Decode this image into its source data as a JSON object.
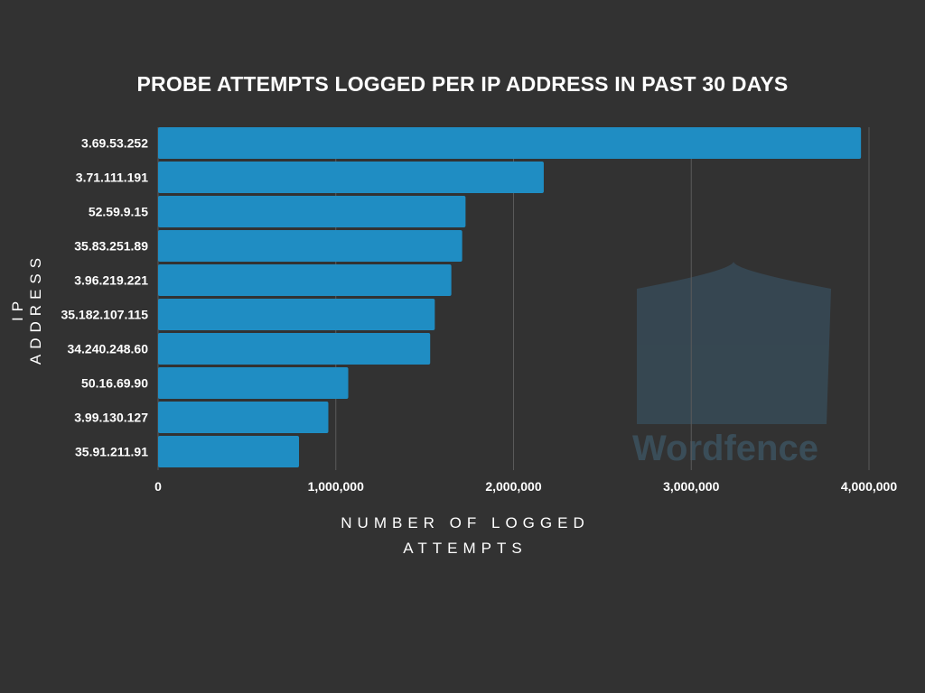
{
  "chart_data": {
    "type": "bar",
    "orientation": "horizontal",
    "title": "PROBE ATTEMPTS LOGGED PER IP ADDRESS IN PAST 30 DAYS",
    "xlabel": "NUMBER OF LOGGED ATTEMPTS",
    "ylabel": "IP ADDRESS",
    "categories": [
      "3.69.53.252",
      "3.71.111.191",
      "52.59.9.15",
      "35.83.251.89",
      "3.96.219.221",
      "35.182.107.115",
      "34.240.248.60",
      "50.16.69.90",
      "3.99.130.127",
      "35.91.211.91"
    ],
    "values": [
      3955000,
      2170000,
      1730000,
      1711000,
      1650000,
      1557000,
      1531000,
      1070000,
      958000,
      793000
    ],
    "xlim": [
      0,
      4000000
    ],
    "xticks": [
      0,
      1000000,
      2000000,
      3000000,
      4000000
    ],
    "xtick_labels": [
      "0",
      "1,000,000",
      "2,000,000",
      "3,000,000",
      "4,000,000"
    ],
    "grid": "vertical",
    "bar_color": "#1f8dc3",
    "background": "#323232"
  },
  "watermark": {
    "logo_text": "Wordfence"
  }
}
